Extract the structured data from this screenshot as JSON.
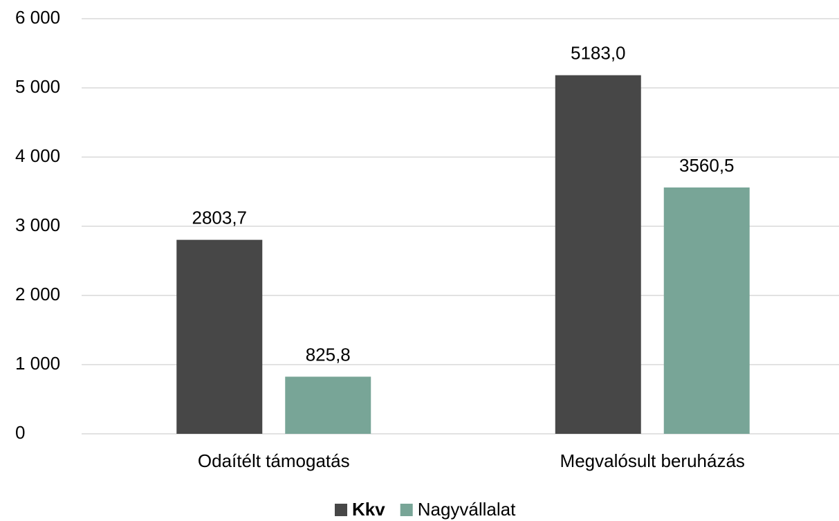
{
  "chart_data": {
    "type": "bar",
    "categories": [
      "Odaítélt támogatás",
      "Megvalósult beruházás"
    ],
    "series": [
      {
        "name": "Kkv",
        "color": "#474747",
        "values": [
          2803.7,
          5183.0
        ],
        "value_labels": [
          "2803,7",
          "5183,0"
        ]
      },
      {
        "name": "Nagyvállalat",
        "color": "#78a597",
        "values": [
          825.8,
          3560.5
        ],
        "value_labels": [
          "825,8",
          "3560,5"
        ]
      }
    ],
    "ylim": [
      0,
      6000
    ],
    "yticks": [
      0,
      {
        "value": 1000,
        "label": "1 000"
      },
      {
        "value": 2000,
        "label": "2 000"
      },
      {
        "value": 3000,
        "label": "3 000"
      },
      {
        "value": 4000,
        "label": "4 000"
      },
      {
        "value": 5000,
        "label": "5 000"
      },
      {
        "value": 6000,
        "label": "6 000"
      }
    ],
    "grid": true,
    "legend": "bottom"
  }
}
